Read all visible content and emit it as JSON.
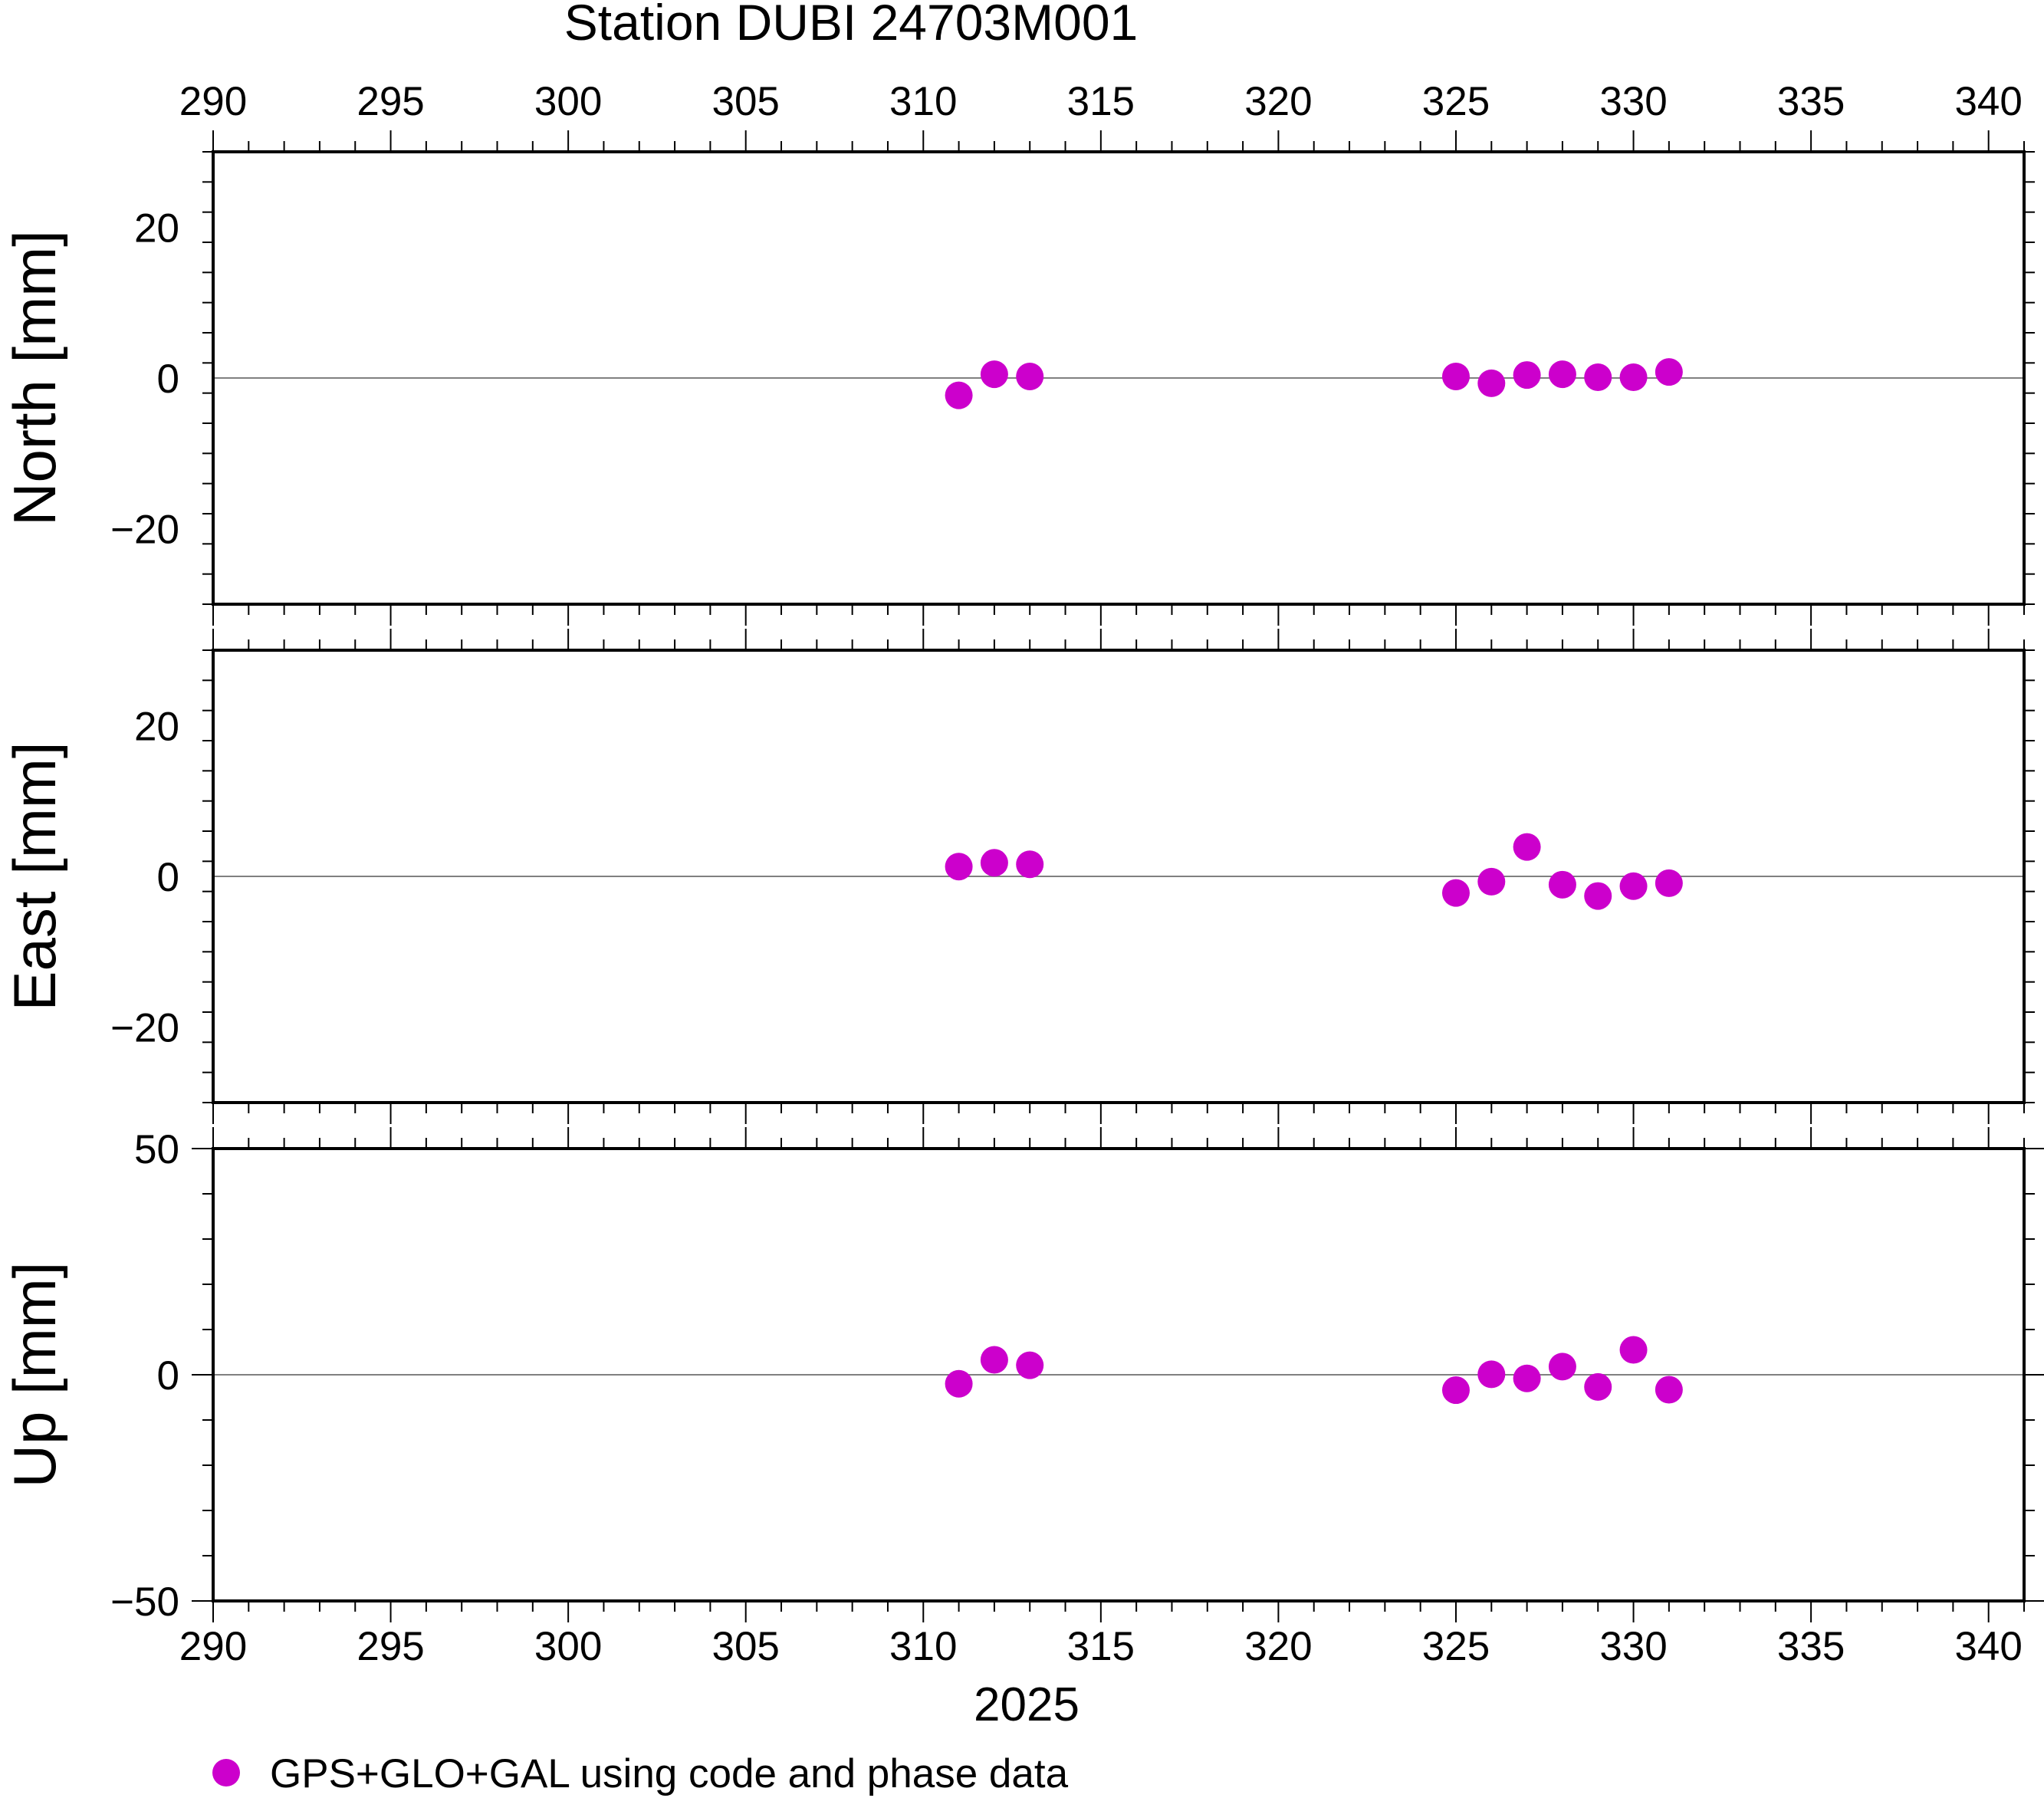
{
  "title": "Station DUBI 24703M001",
  "colors": {
    "points": "#cc00cc",
    "frame": "#000000",
    "zero_line": "#808080"
  },
  "legend": {
    "label": "GPS+GLO+GAL using code and phase data",
    "placement": "bottom-left"
  },
  "chart_data": [
    {
      "type": "scatter",
      "panel": "north",
      "ylabel": "North [mm]",
      "xlim": [
        290,
        341
      ],
      "ylim": [
        -30,
        30
      ],
      "xticks": [
        290,
        295,
        300,
        305,
        310,
        315,
        320,
        325,
        330,
        335,
        340
      ],
      "yticks": [
        -20,
        0,
        20
      ],
      "ytick_labels": [
        "−20",
        "0",
        "20"
      ],
      "series": [
        {
          "name": "GPS+GLO+GAL using code and phase data",
          "x": [
            311,
            312,
            313,
            325,
            326,
            327,
            328,
            329,
            330,
            331
          ],
          "y": [
            -2.3,
            0.5,
            0.2,
            0.2,
            -0.7,
            0.4,
            0.5,
            0.1,
            0.1,
            0.8
          ]
        }
      ]
    },
    {
      "type": "scatter",
      "panel": "east",
      "ylabel": "East [mm]",
      "xlim": [
        290,
        341
      ],
      "ylim": [
        -30,
        30
      ],
      "xticks": [
        290,
        295,
        300,
        305,
        310,
        315,
        320,
        325,
        330,
        335,
        340
      ],
      "yticks": [
        -20,
        0,
        20
      ],
      "ytick_labels": [
        "−20",
        "0",
        "20"
      ],
      "series": [
        {
          "name": "GPS+GLO+GAL using code and phase data",
          "x": [
            311,
            312,
            313,
            325,
            326,
            327,
            328,
            329,
            330,
            331
          ],
          "y": [
            1.3,
            1.8,
            1.6,
            -2.2,
            -0.7,
            3.9,
            -1.1,
            -2.6,
            -1.3,
            -0.9
          ]
        }
      ]
    },
    {
      "type": "scatter",
      "panel": "up",
      "ylabel": "Up [mm]",
      "xlabel": "2025",
      "xlim": [
        290,
        341
      ],
      "ylim": [
        -50,
        50
      ],
      "xticks": [
        290,
        295,
        300,
        305,
        310,
        315,
        320,
        325,
        330,
        335,
        340
      ],
      "yticks": [
        -50,
        0,
        50
      ],
      "ytick_labels": [
        "−50",
        "0",
        "50"
      ],
      "series": [
        {
          "name": "GPS+GLO+GAL using code and phase data",
          "x": [
            311,
            312,
            313,
            325,
            326,
            327,
            328,
            329,
            330,
            331
          ],
          "y": [
            -2.0,
            3.3,
            2.1,
            -3.4,
            0.1,
            -0.8,
            1.8,
            -2.7,
            5.5,
            -3.3
          ]
        }
      ]
    }
  ]
}
